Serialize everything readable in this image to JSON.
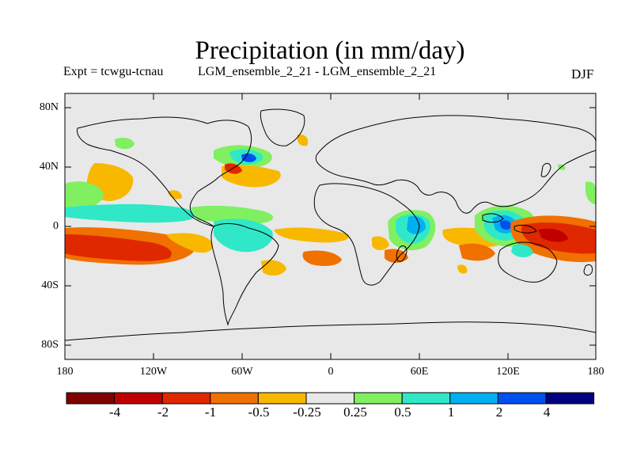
{
  "title": "Precipitation (in mm/day)",
  "experiment_label": "Expt = tcwgu-tcnau",
  "comparison_label": "LGM_ensemble_2_21 - LGM_ensemble_2_21",
  "season": "DJF",
  "y_axis": {
    "ticks": [
      "80N",
      "40N",
      "0",
      "40S",
      "80S"
    ]
  },
  "x_axis": {
    "ticks": [
      "180",
      "120W",
      "60W",
      "0",
      "60E",
      "120E",
      "180"
    ]
  },
  "colorbar": {
    "colors": [
      "#800000",
      "#c00000",
      "#e02800",
      "#f07000",
      "#f8b800",
      "#e8e8e8",
      "#80f060",
      "#30e8c8",
      "#00b0f0",
      "#0050f0",
      "#000080"
    ],
    "labels": [
      "-4",
      "-2",
      "-1",
      "-0.5",
      "-0.25",
      "0.25",
      "0.5",
      "1",
      "2",
      "4"
    ]
  },
  "colors": {
    "ocean_background": "#e8e8e8",
    "coastline": "#000000"
  }
}
